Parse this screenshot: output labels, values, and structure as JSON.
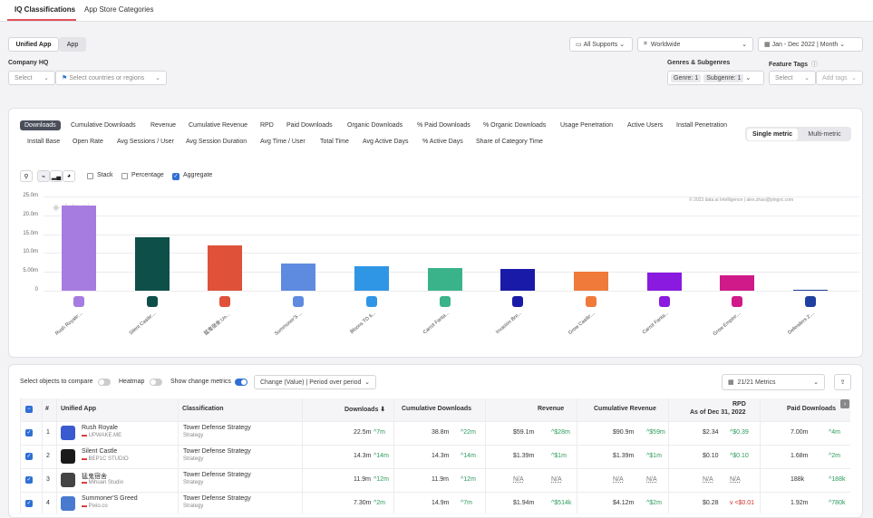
{
  "tabs": [
    {
      "label": "IQ Classifications",
      "active": true
    },
    {
      "label": "App Store Categories",
      "active": false
    }
  ],
  "view_toggle": {
    "unified": "Unified App",
    "app": "App"
  },
  "filters": {
    "supports": "All Supports",
    "region": "Worldwide",
    "date_range": "Jan - Dec 2022",
    "granularity": "Month",
    "company_hq_label": "Company HQ",
    "company_select": "Select",
    "countries_placeholder": "Select countries or regions",
    "genres_label": "Genres & Subgenres",
    "genre_chip": "Genre: 1",
    "subgenre_chip": "Subgenre: 1",
    "feature_tags_label": "Feature Tags",
    "tags_select": "Select",
    "add_tags": "Add tags"
  },
  "metric_tabs_row1": [
    "Downloads",
    "Cumulative Downloads",
    "Revenue",
    "Cumulative Revenue",
    "RPD",
    "Paid Downloads",
    "Organic Downloads",
    "% Paid Downloads",
    "% Organic Downloads",
    "Usage Penetration",
    "Active Users",
    "Install Penetration"
  ],
  "metric_tabs_row2": [
    "Install Base",
    "Open Rate",
    "Avg Sessions / User",
    "Avg Session Duration",
    "Avg Time / User",
    "Total Time",
    "Avg Active Days",
    "% Active Days",
    "Share of Category Time"
  ],
  "metric_mode": {
    "single": "Single metric",
    "multi": "Multi-metric"
  },
  "chart_options": {
    "stack": "Stack",
    "percentage": "Percentage",
    "aggregate": "Aggregate"
  },
  "chart_credit": "© 2023 data.ai Intelligence | alex.zhao@pingvc.com",
  "watermark": "data.ai",
  "chart_data": {
    "type": "bar",
    "categories": [
      "Rush Royale:...",
      "Silent Castle:...",
      "猛鬼宿舍:Un...",
      "Summoner'S ...",
      "Bloons TD 6...",
      "Carrot Fanta...",
      "Invasion Bre...",
      "Grow Castle:...",
      "Carrot Fanta...",
      "Grow Empire:...",
      "Defenders 2:..."
    ],
    "values": [
      22.5,
      14.3,
      11.9,
      7.3,
      6.5,
      6.0,
      5.8,
      5.0,
      4.9,
      4.1,
      0.3
    ],
    "colors": [
      "#a67ce0",
      "#0e4f4a",
      "#e0513a",
      "#5e8be0",
      "#2f96e6",
      "#3bb38a",
      "#1a1aa8",
      "#f07a3a",
      "#8a1ae0",
      "#d01a8a",
      "#2040a0"
    ],
    "y_ticks": [
      "0",
      "5.00m",
      "10.0m",
      "15.0m",
      "20.0m",
      "25.0m"
    ],
    "ylim": [
      0,
      25
    ]
  },
  "table_controls": {
    "select_compare": "Select objects to compare",
    "heatmap": "Heatmap",
    "show_change": "Show change metrics",
    "change_mode": "Change (Value) | Period over period",
    "metrics_count": "21/21 Metrics"
  },
  "table": {
    "headers": {
      "num": "#",
      "app": "Unified App",
      "classification": "Classification",
      "downloads": "Downloads",
      "cum_downloads": "Cumulative Downloads",
      "revenue": "Revenue",
      "cum_revenue": "Cumulative Revenue",
      "rpd": "RPD",
      "rpd_sub": "As of Dec 31, 2022",
      "paid_downloads": "Paid Downloads"
    },
    "rows": [
      {
        "num": "1",
        "name": "Rush Royale",
        "publisher": "UPWAKE.ME",
        "class": "Tower Defense Strategy",
        "class_sub": "Strategy",
        "downloads": "22.5m",
        "downloads_chg": "^7m",
        "cum": "38.8m",
        "cum_chg": "^22m",
        "rev": "$59.1m",
        "rev_chg": "^$28m",
        "cum_rev": "$90.9m",
        "cum_rev_chg": "^$59m",
        "rpd": "$2.34",
        "rpd_chg": "^$0.39",
        "paid": "7.00m",
        "paid_chg": "^4m",
        "icon": "#3a5ad0"
      },
      {
        "num": "2",
        "name": "Silent Castle",
        "publisher": "BEP1C STUDIO",
        "class": "Tower Defense Strategy",
        "class_sub": "Strategy",
        "downloads": "14.3m",
        "downloads_chg": "^14m",
        "cum": "14.3m",
        "cum_chg": "^14m",
        "rev": "$1.39m",
        "rev_chg": "^$1m",
        "cum_rev": "$1.39m",
        "cum_rev_chg": "^$1m",
        "rpd": "$0.10",
        "rpd_chg": "^$0.10",
        "paid": "1.68m",
        "paid_chg": "^2m",
        "icon": "#1a1a1a"
      },
      {
        "num": "3",
        "name": "猛鬼宿舍",
        "publisher": "Mihuan Studio",
        "class": "Tower Defense Strategy",
        "class_sub": "Strategy",
        "downloads": "11.9m",
        "downloads_chg": "^12m",
        "cum": "11.9m",
        "cum_chg": "^12m",
        "rev": "N/A",
        "rev_chg": "N/A",
        "cum_rev": "N/A",
        "cum_rev_chg": "N/A",
        "rpd": "N/A",
        "rpd_chg": "N/A",
        "paid": "188k",
        "paid_chg": "^188k",
        "icon": "#444444"
      },
      {
        "num": "4",
        "name": "Summoner'S Greed",
        "publisher": "Pixio.co",
        "class": "Tower Defense Strategy",
        "class_sub": "Strategy",
        "downloads": "7.30m",
        "downloads_chg": "^2m",
        "cum": "14.9m",
        "cum_chg": "^7m",
        "rev": "$1.94m",
        "rev_chg": "^$514k",
        "cum_rev": "$4.12m",
        "cum_rev_chg": "^$2m",
        "rpd": "$0.28",
        "rpd_chg": "v <$0.01",
        "paid": "1.92m",
        "paid_chg": "^780k",
        "icon": "#4a7ad0"
      }
    ]
  }
}
